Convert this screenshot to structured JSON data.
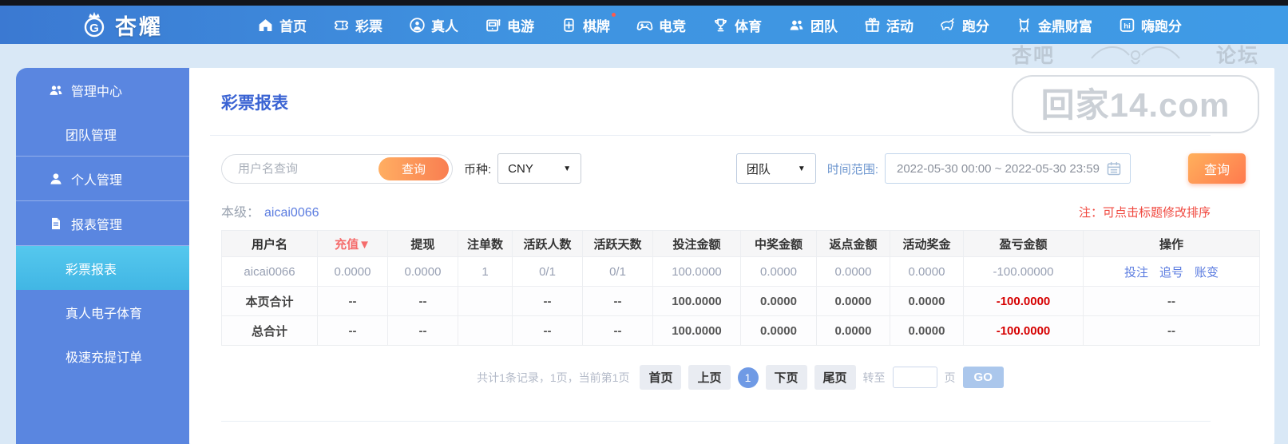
{
  "topbar": {
    "logo": {
      "badge_letter": "G",
      "text": "杏耀"
    },
    "items": [
      {
        "label": "首页",
        "icon": "home-icon"
      },
      {
        "label": "彩票",
        "icon": "ticket-icon"
      },
      {
        "label": "真人",
        "icon": "live-person-icon"
      },
      {
        "label": "电游",
        "icon": "slot-machine-icon"
      },
      {
        "label": "棋牌",
        "icon": "cards-icon",
        "badge": true
      },
      {
        "label": "电竞",
        "icon": "gamepad-icon"
      },
      {
        "label": "体育",
        "icon": "trophy-icon"
      },
      {
        "label": "团队",
        "icon": "team-icon"
      },
      {
        "label": "活动",
        "icon": "gift-icon"
      },
      {
        "label": "跑分",
        "icon": "rhino-icon"
      },
      {
        "label": "金鼎财富",
        "icon": "cauldron-icon"
      },
      {
        "label": "嗨跑分",
        "icon": "hi-square-icon"
      }
    ]
  },
  "sidebar": {
    "items": [
      {
        "label": "管理中心",
        "icon": "team-icon",
        "type": "group"
      },
      {
        "label": "团队管理",
        "type": "sub"
      },
      {
        "label": "个人管理",
        "icon": "person-icon",
        "type": "group",
        "divider_before": true
      },
      {
        "label": "报表管理",
        "icon": "report-icon",
        "type": "group",
        "divider_before": true
      },
      {
        "label": "彩票报表",
        "type": "sub",
        "active": true,
        "divider_before": true
      },
      {
        "label": "真人电子体育",
        "type": "sub"
      },
      {
        "label": "极速充提订单",
        "type": "sub"
      }
    ]
  },
  "main": {
    "title": "彩票报表",
    "filters": {
      "username_placeholder": "用户名查询",
      "search_button": "查询",
      "currency_label": "币种:",
      "currency_value": "CNY",
      "scope_value": "团队",
      "time_label": "时间范围:",
      "time_value": "2022-05-30 00:00 ~ 2022-05-30 23:59",
      "submit_button": "查询",
      "caret": "▼"
    },
    "level": {
      "label": "本级：",
      "value": "aicai0066"
    },
    "note": "注：可点击标题修改排序",
    "table": {
      "sort_indicator": "▼",
      "columns": [
        {
          "label": "用户名"
        },
        {
          "label": "充值",
          "sorted": true
        },
        {
          "label": "提现"
        },
        {
          "label": "注单数"
        },
        {
          "label": "活跃人数"
        },
        {
          "label": "活跃天数"
        },
        {
          "label": "投注金额"
        },
        {
          "label": "中奖金额"
        },
        {
          "label": "返点金额"
        },
        {
          "label": "活动奖金"
        },
        {
          "label": "盈亏金额"
        },
        {
          "label": "操作"
        }
      ],
      "rows": [
        {
          "type": "data",
          "cells": [
            "aicai0066",
            "0.0000",
            "0.0000",
            "1",
            "0/1",
            "0/1",
            "100.0000",
            "0.0000",
            "0.0000",
            "0.0000",
            "-100.00000"
          ],
          "actions": [
            "投注",
            "追号",
            "账变"
          ]
        },
        {
          "type": "summary",
          "cells": [
            "本页合计",
            "--",
            "--",
            "",
            "--",
            "--",
            "100.0000",
            "0.0000",
            "0.0000",
            "0.0000",
            "-100.0000"
          ],
          "actions_text": "--"
        },
        {
          "type": "summary",
          "cells": [
            "总合计",
            "--",
            "--",
            "",
            "--",
            "--",
            "100.0000",
            "0.0000",
            "0.0000",
            "0.0000",
            "-100.0000"
          ],
          "actions_text": "--"
        }
      ]
    },
    "pagination": {
      "summary": "共计1条记录，1页，当前第1页",
      "first": "首页",
      "prev": "上页",
      "current": "1",
      "next": "下页",
      "last": "尾页",
      "goto_label": "转至",
      "goto_value": "",
      "page_label": "页",
      "go_button": "GO"
    }
  },
  "watermark": {
    "left_text": "杏吧",
    "right_text": "论坛",
    "main_text": "回家14.com"
  },
  "colors": {
    "navbar_blue": "#3f9be6",
    "sidebar_blue": "#5a86e0",
    "active_item_blue": "#4ac1ec",
    "title_blue": "#3a63d3",
    "link_blue": "#5b7ce0",
    "accent_orange": "#f97e51",
    "sorted_red": "#f56c6c",
    "negative_red": "#e84c44",
    "summary_negative_red": "#d60000",
    "note_red": "#f0483f"
  }
}
